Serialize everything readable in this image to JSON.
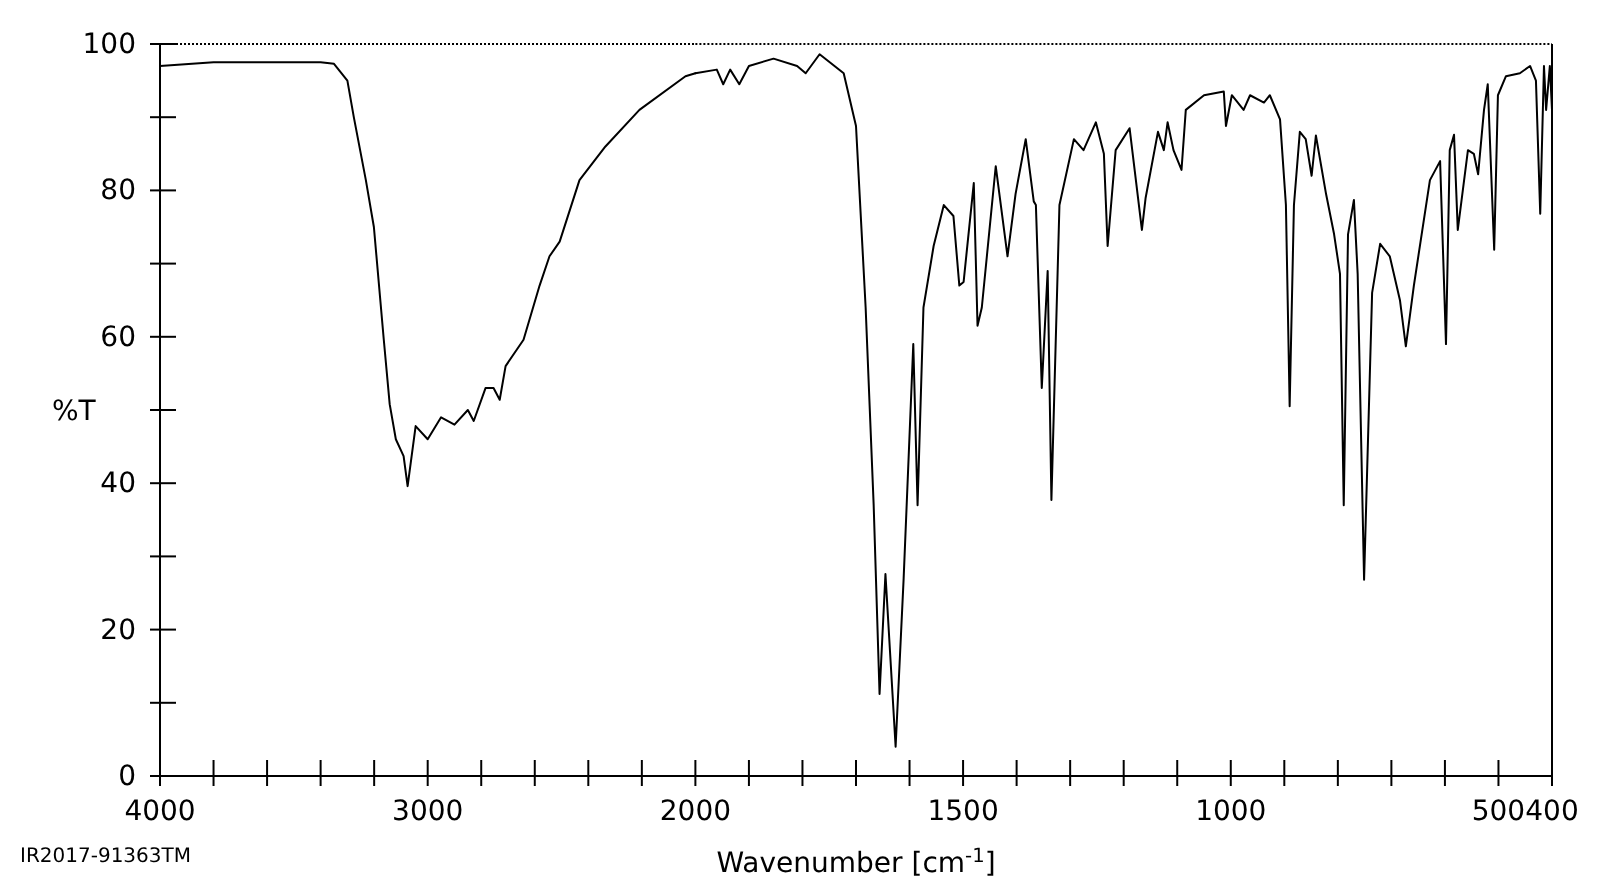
{
  "chart_data": [
    {
      "type": "line",
      "ylabel": "%T",
      "annotations": [
        "IR2017-91363TM"
      ],
      "xlim": [
        4000,
        2000
      ],
      "ylim": [
        0,
        100
      ],
      "xticks": [
        4000,
        {
          "value": 3800,
          "label": null
        },
        {
          "value": 3600,
          "label": null
        },
        {
          "value": 3400,
          "label": null
        },
        {
          "value": 3200,
          "label": null
        },
        3000,
        {
          "value": 2800,
          "label": null
        },
        {
          "value": 2600,
          "label": null
        },
        {
          "value": 2400,
          "label": null
        },
        {
          "value": 2200,
          "label": null
        }
      ],
      "yticks": [
        0,
        {
          "value": 10,
          "label": null
        },
        20,
        {
          "value": 30,
          "label": null
        },
        40,
        {
          "value": 50,
          "label": null
        },
        60,
        {
          "value": 70,
          "label": null
        },
        80,
        {
          "value": 90,
          "label": null
        },
        100
      ],
      "grid": false,
      "marker": "none",
      "line_style": "solid",
      "series": [
        {
          "color": "#000000",
          "x": [
            4000,
            3800,
            3600,
            3400,
            3350,
            3300,
            3276,
            3231,
            3201,
            3164,
            3142,
            3119,
            3090,
            3075,
            3045,
            3000,
            2950,
            2900,
            2850,
            2828,
            2784,
            2754,
            2731,
            2709,
            2642,
            2582,
            2545,
            2507,
            2433,
            2336,
            2209,
            2037,
            2000
          ],
          "values": [
            97,
            97.5,
            97.5,
            97.5,
            97.3,
            95,
            90,
            81.4,
            75,
            59.6,
            50.8,
            46,
            43.7,
            39.6,
            47.8,
            46,
            49,
            48,
            50,
            48.5,
            53,
            53,
            51.4,
            56,
            59.6,
            67,
            71,
            73,
            81.4,
            86,
            91,
            95.6,
            96
          ]
        }
      ]
    },
    {
      "type": "line",
      "xlabel": "Wavenumber [cm$^{-1}$]",
      "xlim": [
        2000,
        400
      ],
      "ylim": [
        0,
        100
      ],
      "tick_labels": "x",
      "xticks": [
        2000,
        {
          "value": 1900,
          "label": null
        },
        {
          "value": 1800,
          "label": null
        },
        {
          "value": 1700,
          "label": null
        },
        {
          "value": 1600,
          "label": null
        },
        1500,
        {
          "value": 1400,
          "label": null
        },
        {
          "value": 1300,
          "label": null
        },
        {
          "value": 1200,
          "label": null
        },
        {
          "value": 1100,
          "label": null
        },
        1000,
        {
          "value": 900,
          "label": null
        },
        {
          "value": 800,
          "label": null
        },
        {
          "value": 700,
          "label": null
        },
        {
          "value": 600,
          "label": null
        },
        500,
        400
      ],
      "grid": false,
      "marker": "none",
      "line_style": "solid",
      "series": [
        {
          "color": "#000000",
          "x": [
            2000,
            1960,
            1948,
            1935,
            1918,
            1900,
            1854,
            1810,
            1794,
            1768,
            1723,
            1700,
            1682,
            1667,
            1656,
            1645,
            1626,
            1611,
            1593,
            1585,
            1574,
            1555,
            1536,
            1518,
            1507,
            1499,
            1480,
            1473,
            1465,
            1439,
            1417,
            1402,
            1383,
            1368,
            1364,
            1353,
            1342,
            1335,
            1320,
            1293,
            1275,
            1252,
            1237,
            1230,
            1215,
            1189,
            1166,
            1159,
            1136,
            1125,
            1118,
            1107,
            1092,
            1084,
            1050,
            1013,
            1009,
            998,
            976,
            964,
            938,
            927,
            908,
            897,
            890,
            882,
            871,
            860,
            849,
            841,
            822,
            807,
            796,
            789,
            781,
            770,
            763,
            751,
            736,
            721,
            703,
            684,
            673,
            658,
            628,
            609,
            598,
            591,
            583,
            576,
            557,
            546,
            538,
            527,
            520,
            508,
            501,
            486,
            460,
            441,
            430,
            422,
            415,
            411,
            404,
            400
          ],
          "values": [
            96,
            96.5,
            94.5,
            96.5,
            94.5,
            97,
            98,
            97,
            96,
            98.6,
            96,
            88.8,
            64,
            37,
            11.2,
            27.6,
            4,
            27,
            59,
            37,
            64,
            72.4,
            78,
            76.5,
            67,
            67.5,
            81,
            61.5,
            64,
            83.3,
            71,
            79.5,
            87,
            78.5,
            78,
            53,
            69,
            37.7,
            78,
            87,
            85.5,
            89.3,
            85,
            72.4,
            85.5,
            88.5,
            74.6,
            79,
            88,
            85.5,
            89.3,
            85.5,
            82.8,
            91,
            93,
            93.5,
            88.8,
            93,
            91,
            93,
            92,
            93,
            89.7,
            78,
            50.5,
            78,
            88,
            87,
            82,
            87.5,
            79.5,
            74,
            68.6,
            37,
            74,
            78.7,
            68.6,
            26.8,
            66,
            72.7,
            71,
            65,
            58.7,
            67,
            81.4,
            84,
            59,
            85.5,
            87.6,
            74.6,
            85.5,
            85,
            82.2,
            91,
            94.5,
            71.9,
            93,
            95.6,
            96,
            97,
            95,
            76.8,
            97,
            91,
            97,
            91
          ]
        }
      ]
    }
  ]
}
